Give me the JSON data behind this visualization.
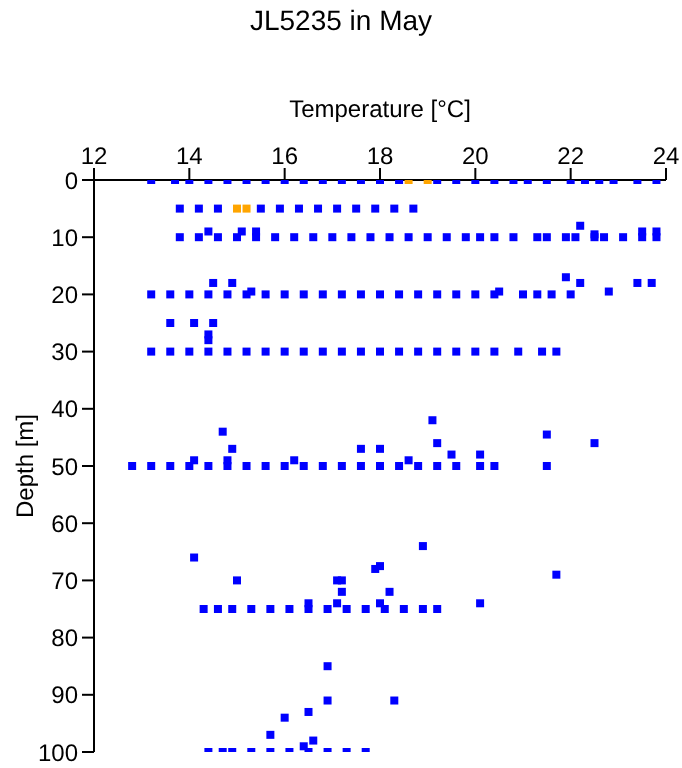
{
  "chart_data": {
    "type": "scatter",
    "title": "JL5235 in May",
    "xlabel": "Temperature [°C]",
    "ylabel": "Depth [m]",
    "xlim": [
      12,
      24
    ],
    "xticks": [
      12,
      14,
      16,
      18,
      20,
      22,
      24
    ],
    "ylim": [
      100,
      0
    ],
    "yticks": [
      0,
      10,
      20,
      30,
      40,
      50,
      60,
      70,
      80,
      90,
      100
    ],
    "grid": false,
    "legend": false,
    "marker": "square",
    "series": [
      {
        "color": "#0000ff",
        "x": [
          13.2,
          13.7,
          14.0,
          14.4,
          14.8,
          15.2,
          15.6,
          16.0,
          16.4,
          16.8,
          17.2,
          17.6,
          18.0,
          18.4,
          19.2,
          19.6,
          20.0,
          20.4,
          20.8,
          21.1,
          21.5,
          22.0,
          22.3,
          22.6,
          22.9,
          23.4,
          23.8,
          13.8,
          14.2,
          14.6,
          15.5,
          15.9,
          16.3,
          16.7,
          17.1,
          17.5,
          17.9,
          18.3,
          18.7,
          13.8,
          14.2,
          14.6,
          15.0,
          15.4,
          15.8,
          16.2,
          16.6,
          17.0,
          17.4,
          17.8,
          18.2,
          18.6,
          19.0,
          19.4,
          19.8,
          20.1,
          20.4,
          20.8,
          21.3,
          21.5,
          21.9,
          22.1,
          22.5,
          22.7,
          23.1,
          23.5,
          23.8,
          14.4,
          15.1,
          15.4,
          22.2,
          22.5,
          23.5,
          23.8,
          13.2,
          13.6,
          14.0,
          14.4,
          14.8,
          15.2,
          15.6,
          16.0,
          16.4,
          16.8,
          17.2,
          17.6,
          18.0,
          18.4,
          18.8,
          19.2,
          19.6,
          20.0,
          20.4,
          21.0,
          21.3,
          21.6,
          22.0,
          14.5,
          14.9,
          22.2,
          23.4,
          23.7,
          21.9,
          15.3,
          22.8,
          20.5,
          13.6,
          14.1,
          14.5,
          14.4,
          14.4,
          13.2,
          13.6,
          14.0,
          14.4,
          14.8,
          15.2,
          15.6,
          16.0,
          16.4,
          16.8,
          17.2,
          17.6,
          18.0,
          18.4,
          18.8,
          19.2,
          19.6,
          20.0,
          20.4,
          20.9,
          21.4,
          21.7,
          12.8,
          13.2,
          13.6,
          14.0,
          14.4,
          14.8,
          15.2,
          15.6,
          16.0,
          16.4,
          16.8,
          17.2,
          17.6,
          18.0,
          18.4,
          18.8,
          19.2,
          19.6,
          20.1,
          20.4,
          21.5,
          19.1,
          14.7,
          21.5,
          19.2,
          22.5,
          14.9,
          17.6,
          18.0,
          19.5,
          20.1,
          14.1,
          14.8,
          16.2,
          18.6,
          14.3,
          14.6,
          14.9,
          15.3,
          15.7,
          16.1,
          16.5,
          16.9,
          17.3,
          17.7,
          18.1,
          18.5,
          18.9,
          19.2,
          14.1,
          18.9,
          21.7,
          17.9,
          18.0,
          15.0,
          17.1,
          17.2,
          17.2,
          18.2,
          16.5,
          17.1,
          18.0,
          20.1,
          14.4,
          14.7,
          14.9,
          15.3,
          15.7,
          16.1,
          16.5,
          16.9,
          17.3,
          17.7,
          16.9,
          16.9,
          18.3,
          16.5,
          16.0,
          15.7,
          16.6,
          16.4
        ],
        "values": [
          0,
          0,
          0,
          0,
          0,
          0,
          0,
          0,
          0,
          0,
          0,
          0,
          0,
          0,
          0,
          0,
          0,
          0,
          0,
          0,
          0,
          0,
          0,
          0,
          0,
          0,
          0,
          5,
          5,
          5,
          5,
          5,
          5,
          5,
          5,
          5,
          5,
          5,
          5,
          10,
          10,
          10,
          10,
          10,
          10,
          10,
          10,
          10,
          10,
          10,
          10,
          10,
          10,
          10,
          10,
          10,
          10,
          10,
          10,
          10,
          10,
          10,
          10,
          10,
          10,
          10,
          10,
          9,
          9,
          9,
          8,
          9.5,
          9,
          9,
          20,
          20,
          20,
          20,
          20,
          20,
          20,
          20,
          20,
          20,
          20,
          20,
          20,
          20,
          20,
          20,
          20,
          20,
          20,
          20,
          20,
          20,
          20,
          18,
          18,
          18,
          18,
          18,
          17,
          19.5,
          19.5,
          19.5,
          25,
          25,
          25,
          27,
          28,
          30,
          30,
          30,
          30,
          30,
          30,
          30,
          30,
          30,
          30,
          30,
          30,
          30,
          30,
          30,
          30,
          30,
          30,
          30,
          30,
          30,
          30,
          50,
          50,
          50,
          50,
          50,
          50,
          50,
          50,
          50,
          50,
          50,
          50,
          50,
          50,
          50,
          50,
          50,
          50,
          50,
          50,
          50,
          42,
          44,
          44.5,
          46,
          46,
          47,
          47,
          47,
          48,
          48,
          49,
          49,
          49,
          49,
          75,
          75,
          75,
          75,
          75,
          75,
          75,
          75,
          75,
          75,
          75,
          75,
          75,
          75,
          66,
          64,
          69,
          68,
          67.5,
          70,
          70,
          70,
          72,
          72,
          74,
          74,
          74,
          74,
          100,
          100,
          100,
          100,
          100,
          100,
          100,
          100,
          100,
          100,
          85,
          91,
          91,
          93,
          94,
          97,
          98,
          99
        ]
      },
      {
        "color": "#ffa500",
        "x": [
          18.6,
          19.0,
          15.0,
          15.2
        ],
        "values": [
          0,
          0,
          5,
          5
        ]
      }
    ]
  }
}
